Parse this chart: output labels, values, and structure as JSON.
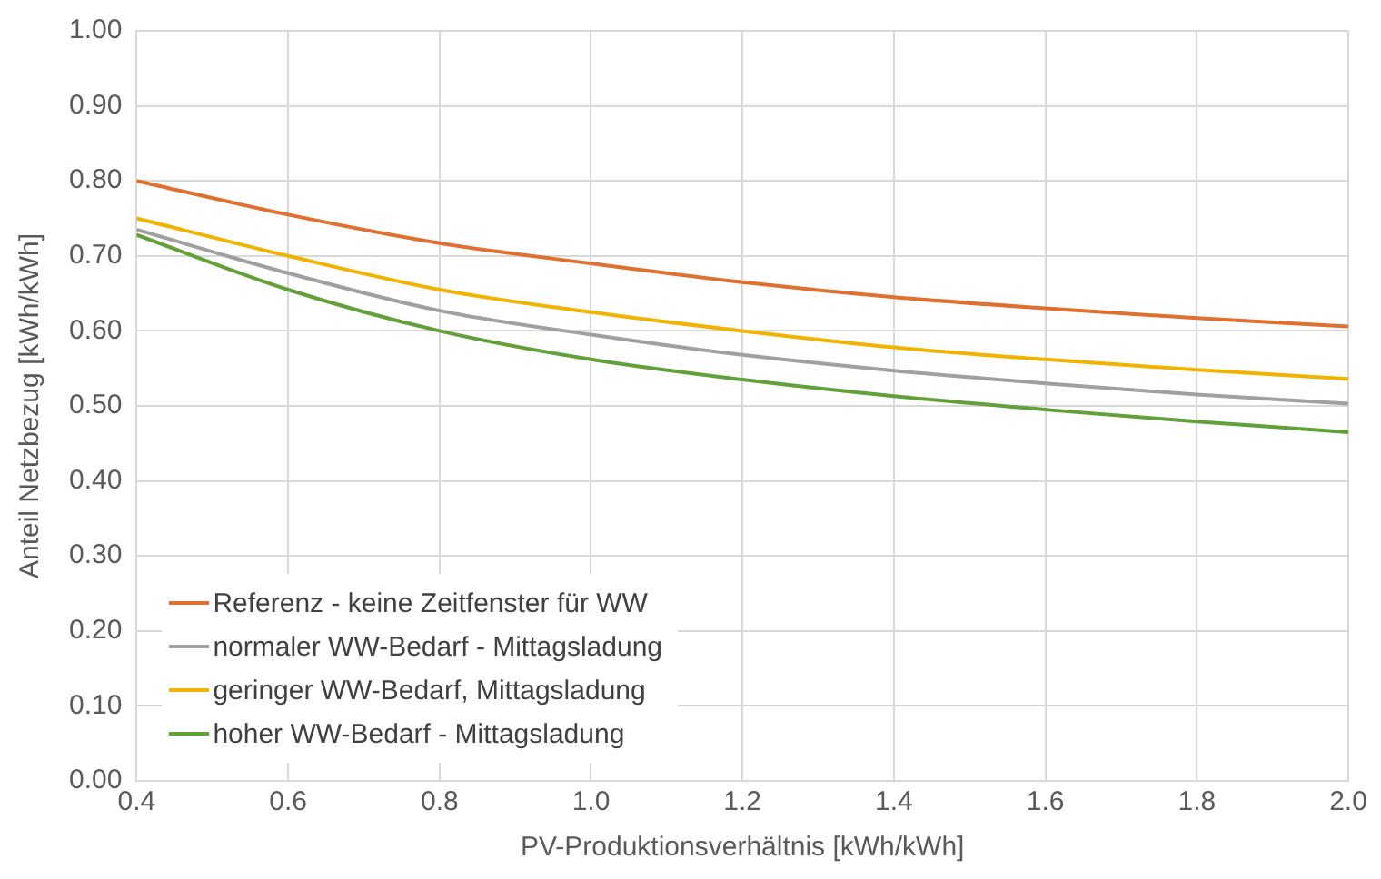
{
  "chart_data": {
    "type": "line",
    "xlabel": "PV-Produktionsverhältnis [kWh/kWh]",
    "ylabel": "Anteil Netzbezug [kWh/kWh]",
    "x": [
      0.4,
      0.6,
      0.8,
      1.0,
      1.2,
      1.4,
      1.6,
      1.8,
      2.0
    ],
    "series": [
      {
        "name": "Referenz - keine Zeitfenster für WW",
        "color": "#e07030",
        "values": [
          0.8,
          0.755,
          0.717,
          0.69,
          0.665,
          0.645,
          0.63,
          0.617,
          0.606
        ]
      },
      {
        "name": "normaler WW-Bedarf - Mittagsladung",
        "color": "#a0a0a0",
        "values": [
          0.735,
          0.677,
          0.627,
          0.595,
          0.568,
          0.547,
          0.53,
          0.515,
          0.503
        ]
      },
      {
        "name": "geringer WW-Bedarf, Mittagsladung",
        "color": "#f0b400",
        "values": [
          0.75,
          0.7,
          0.655,
          0.625,
          0.6,
          0.578,
          0.562,
          0.548,
          0.536
        ]
      },
      {
        "name": "hoher WW-Bedarf - Mittagsladung",
        "color": "#62a03a",
        "values": [
          0.728,
          0.655,
          0.6,
          0.562,
          0.535,
          0.513,
          0.495,
          0.479,
          0.465
        ]
      }
    ],
    "xlim": [
      0.4,
      2.0
    ],
    "xticks": [
      {
        "value": 0.4,
        "label": "0.4"
      },
      {
        "value": 0.6,
        "label": "0.6"
      },
      {
        "value": 0.8,
        "label": "0.8"
      },
      {
        "value": 1.0,
        "label": "1.0"
      },
      {
        "value": 1.2,
        "label": "1.2"
      },
      {
        "value": 1.4,
        "label": "1.4"
      },
      {
        "value": 1.6,
        "label": "1.6"
      },
      {
        "value": 1.8,
        "label": "1.8"
      },
      {
        "value": 2.0,
        "label": "2.0"
      }
    ],
    "ylim": [
      0,
      1
    ],
    "yticks": [
      {
        "value": 0,
        "label": "0.00"
      },
      {
        "value": 0.1,
        "label": "0.10"
      },
      {
        "value": 0.2,
        "label": "0.20"
      },
      {
        "value": 0.3,
        "label": "0.30"
      },
      {
        "value": 0.4,
        "label": "0.40"
      },
      {
        "value": 0.5,
        "label": "0.50"
      },
      {
        "value": 0.6,
        "label": "0.60"
      },
      {
        "value": 0.7,
        "label": "0.70"
      },
      {
        "value": 0.8,
        "label": "0.80"
      },
      {
        "value": 0.9,
        "label": "0.90"
      },
      {
        "value": 1.0,
        "label": "1.00"
      }
    ],
    "grid": true,
    "legend": "bottom left",
    "marker": "none",
    "line_style": "solid"
  }
}
